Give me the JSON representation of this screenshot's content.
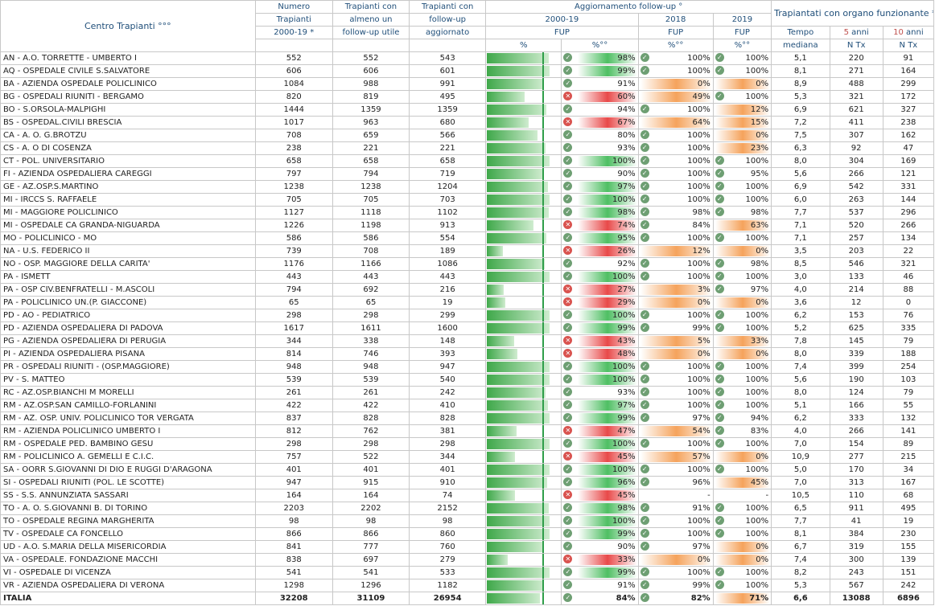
{
  "header": {
    "centro": "Centro Trapianti °°°",
    "numero": [
      "Numero",
      "Trapianti",
      "2000-19 *"
    ],
    "almeno": [
      "Trapianti con",
      "almeno un",
      "follow-up utile"
    ],
    "aggiornato": [
      "Trapianti con",
      "follow-up",
      "aggiornato"
    ],
    "agg_title": "Aggiornamento follow-up °",
    "y2000": "2000-19",
    "y2018": "2018",
    "y2019": "2019",
    "fup": "FUP",
    "pct": "%",
    "pctdeg": "%°°",
    "funz_title": "Trapiantati con organo funzionante **",
    "tempo": [
      "Tempo",
      "mediana"
    ],
    "anni5": [
      "5",
      " anni"
    ],
    "anni10": [
      "10",
      " anni"
    ],
    "ntx": "N Tx"
  },
  "rows": [
    {
      "name": "AN  -  A.O. TORRETTE - UMBERTO I",
      "n": "552",
      "a": "552",
      "g": "543",
      "p": 98,
      "p18": "100%",
      "p19": "100%",
      "t": "5,1",
      "c5": "220",
      "c10": "91"
    },
    {
      "name": "AQ  -  OSPEDALE CIVILE S.SALVATORE",
      "n": "606",
      "a": "606",
      "g": "601",
      "p": 99,
      "p18": "100%",
      "p19": "100%",
      "t": "8,1",
      "c5": "271",
      "c10": "164"
    },
    {
      "name": "BA  -  AZIENDA OSPEDALE POLICLINICO",
      "n": "1084",
      "a": "988",
      "g": "991",
      "p": 91,
      "p18": "0%",
      "p19": "0%",
      "t": "8,9",
      "c5": "488",
      "c10": "299"
    },
    {
      "name": "BG  -  OSPEDALI RIUNITI - BERGAMO",
      "n": "820",
      "a": "819",
      "g": "495",
      "p": 60,
      "p18": "49%",
      "p19": "100%",
      "t": "5,3",
      "c5": "321",
      "c10": "172"
    },
    {
      "name": "BO  -  S.ORSOLA-MALPIGHI",
      "n": "1444",
      "a": "1359",
      "g": "1359",
      "p": 94,
      "p18": "100%",
      "p19": "12%",
      "t": "6,9",
      "c5": "621",
      "c10": "327"
    },
    {
      "name": "BS  -  OSPEDAL.CIVILI BRESCIA",
      "n": "1017",
      "a": "963",
      "g": "680",
      "p": 67,
      "p18": "64%",
      "p19": "15%",
      "t": "7,2",
      "c5": "411",
      "c10": "238"
    },
    {
      "name": "CA  -  A. O. G.BROTZU",
      "n": "708",
      "a": "659",
      "g": "566",
      "p": 80,
      "p18": "100%",
      "p19": "0%",
      "t": "7,5",
      "c5": "307",
      "c10": "162"
    },
    {
      "name": "CS  -  A. O DI COSENZA",
      "n": "238",
      "a": "221",
      "g": "221",
      "p": 93,
      "p18": "100%",
      "p19": "23%",
      "t": "6,3",
      "c5": "92",
      "c10": "47"
    },
    {
      "name": "CT  -  POL. UNIVERSITARIO",
      "n": "658",
      "a": "658",
      "g": "658",
      "p": 100,
      "p18": "100%",
      "p19": "100%",
      "t": "8,0",
      "c5": "304",
      "c10": "169"
    },
    {
      "name": "FI  -  AZIENDA OSPEDALIERA CAREGGI",
      "n": "797",
      "a": "794",
      "g": "719",
      "p": 90,
      "p18": "100%",
      "p19": "95%",
      "t": "5,6",
      "c5": "266",
      "c10": "121"
    },
    {
      "name": "GE  -  AZ.OSP.S.MARTINO",
      "n": "1238",
      "a": "1238",
      "g": "1204",
      "p": 97,
      "p18": "100%",
      "p19": "100%",
      "t": "6,9",
      "c5": "542",
      "c10": "331"
    },
    {
      "name": "MI  -  IRCCS S. RAFFAELE",
      "n": "705",
      "a": "705",
      "g": "703",
      "p": 100,
      "p18": "100%",
      "p19": "100%",
      "t": "6,0",
      "c5": "263",
      "c10": "144"
    },
    {
      "name": "MI  -  MAGGIORE POLICLINICO",
      "n": "1127",
      "a": "1118",
      "g": "1102",
      "p": 98,
      "p18": "98%",
      "p19": "98%",
      "t": "7,7",
      "c5": "537",
      "c10": "296"
    },
    {
      "name": "MI  -  OSPEDALE CA GRANDA-NIGUARDA",
      "n": "1226",
      "a": "1198",
      "g": "913",
      "p": 74,
      "p18": "84%",
      "p19": "63%",
      "t": "7,1",
      "c5": "520",
      "c10": "266"
    },
    {
      "name": "MO  -  POLICLINICO - MO",
      "n": "586",
      "a": "586",
      "g": "554",
      "p": 95,
      "p18": "100%",
      "p19": "100%",
      "t": "7,1",
      "c5": "257",
      "c10": "134"
    },
    {
      "name": "NA  -  U.S. FEDERICO II",
      "n": "739",
      "a": "708",
      "g": "189",
      "p": 26,
      "p18": "12%",
      "p19": "0%",
      "t": "3,5",
      "c5": "203",
      "c10": "22"
    },
    {
      "name": "NO  -  OSP. MAGGIORE DELLA CARITA'",
      "n": "1176",
      "a": "1166",
      "g": "1086",
      "p": 92,
      "p18": "100%",
      "p19": "98%",
      "t": "8,5",
      "c5": "546",
      "c10": "321"
    },
    {
      "name": "PA  -  ISMETT",
      "n": "443",
      "a": "443",
      "g": "443",
      "p": 100,
      "p18": "100%",
      "p19": "100%",
      "t": "3,0",
      "c5": "133",
      "c10": "46"
    },
    {
      "name": "PA  -  OSP CIV.BENFRATELLI - M.ASCOLI",
      "n": "794",
      "a": "692",
      "g": "216",
      "p": 27,
      "p18": "3%",
      "p19": "97%",
      "t": "4,0",
      "c5": "214",
      "c10": "88"
    },
    {
      "name": "PA  -  POLICLINICO UN.(P. GIACCONE)",
      "n": "65",
      "a": "65",
      "g": "19",
      "p": 29,
      "p18": "0%",
      "p19": "0%",
      "t": "3,6",
      "c5": "12",
      "c10": "0"
    },
    {
      "name": "PD  -  AO - PEDIATRICO",
      "n": "298",
      "a": "298",
      "g": "299",
      "p": 100,
      "p18": "100%",
      "p19": "100%",
      "t": "6,2",
      "c5": "153",
      "c10": "76"
    },
    {
      "name": "PD  -  AZIENDA OSPEDALIERA DI PADOVA",
      "n": "1617",
      "a": "1611",
      "g": "1600",
      "p": 99,
      "p18": "99%",
      "p19": "100%",
      "t": "5,2",
      "c5": "625",
      "c10": "335"
    },
    {
      "name": "PG  -  AZIENDA OSPEDALIERA DI PERUGIA",
      "n": "344",
      "a": "338",
      "g": "148",
      "p": 43,
      "p18": "5%",
      "p19": "33%",
      "t": "7,8",
      "c5": "145",
      "c10": "79"
    },
    {
      "name": "PI  -  AZIENDA OSPEDALIERA PISANA",
      "n": "814",
      "a": "746",
      "g": "393",
      "p": 48,
      "p18": "0%",
      "p19": "0%",
      "t": "8,0",
      "c5": "339",
      "c10": "188"
    },
    {
      "name": "PR  -  OSPEDALI RIUNITI - (OSP.MAGGIORE)",
      "n": "948",
      "a": "948",
      "g": "947",
      "p": 100,
      "p18": "100%",
      "p19": "100%",
      "t": "7,4",
      "c5": "399",
      "c10": "254"
    },
    {
      "name": "PV  -  S. MATTEO",
      "n": "539",
      "a": "539",
      "g": "540",
      "p": 100,
      "p18": "100%",
      "p19": "100%",
      "t": "5,6",
      "c5": "190",
      "c10": "103"
    },
    {
      "name": "RC  -  AZ.OSP.BIANCHI M MORELLI",
      "n": "261",
      "a": "261",
      "g": "242",
      "p": 93,
      "p18": "100%",
      "p19": "100%",
      "t": "8,0",
      "c5": "124",
      "c10": "79"
    },
    {
      "name": "RM  -  AZ.OSP.SAN CAMILLO-FORLANINI",
      "n": "422",
      "a": "422",
      "g": "410",
      "p": 97,
      "p18": "100%",
      "p19": "100%",
      "t": "5,1",
      "c5": "166",
      "c10": "55"
    },
    {
      "name": "RM  -  AZ. OSP. UNIV. POLICLINICO TOR VERGATA",
      "n": "837",
      "a": "828",
      "g": "828",
      "p": 99,
      "p18": "97%",
      "p19": "94%",
      "t": "6,2",
      "c5": "333",
      "c10": "132"
    },
    {
      "name": "RM  -  AZIENDA POLICLINICO UMBERTO I",
      "n": "812",
      "a": "762",
      "g": "381",
      "p": 47,
      "p18": "54%",
      "p19": "83%",
      "t": "4,0",
      "c5": "266",
      "c10": "141"
    },
    {
      "name": "RM  -  OSPEDALE PED. BAMBINO GESU",
      "n": "298",
      "a": "298",
      "g": "298",
      "p": 100,
      "p18": "100%",
      "p19": "100%",
      "t": "7,0",
      "c5": "154",
      "c10": "89"
    },
    {
      "name": "RM  -  POLICLINICO A. GEMELLI E C.I.C.",
      "n": "757",
      "a": "522",
      "g": "344",
      "p": 45,
      "p18": "57%",
      "p19": "0%",
      "t": "10,9",
      "c5": "277",
      "c10": "215"
    },
    {
      "name": "SA - OORR S.GIOVANNI DI DIO E RUGGI D'ARAGONA",
      "n": "401",
      "a": "401",
      "g": "401",
      "p": 100,
      "p18": "100%",
      "p19": "100%",
      "t": "5,0",
      "c5": "170",
      "c10": "34"
    },
    {
      "name": "SI  -  OSPEDALI RIUNITI (POL. LE SCOTTE)",
      "n": "947",
      "a": "915",
      "g": "910",
      "p": 96,
      "p18": "96%",
      "p19": "45%",
      "t": "7,0",
      "c5": "313",
      "c10": "167"
    },
    {
      "name": "SS  -  S.S. ANNUNZIATA SASSARI",
      "n": "164",
      "a": "164",
      "g": "74",
      "p": 45,
      "p18": "-",
      "p19": "-",
      "t": "10,5",
      "c5": "110",
      "c10": "68"
    },
    {
      "name": "TO  -  A. O. S.GIOVANNI B. DI TORINO",
      "n": "2203",
      "a": "2202",
      "g": "2152",
      "p": 98,
      "p18": "91%",
      "p19": "100%",
      "t": "6,5",
      "c5": "911",
      "c10": "495"
    },
    {
      "name": "TO  -  OSPEDALE REGINA MARGHERITA",
      "n": "98",
      "a": "98",
      "g": "98",
      "p": 100,
      "p18": "100%",
      "p19": "100%",
      "t": "7,7",
      "c5": "41",
      "c10": "19"
    },
    {
      "name": "TV  -  OSPEDALE CA FONCELLO",
      "n": "866",
      "a": "866",
      "g": "860",
      "p": 99,
      "p18": "100%",
      "p19": "100%",
      "t": "8,1",
      "c5": "384",
      "c10": "230"
    },
    {
      "name": "UD  -  A.O. S.MARIA DELLA MISERICORDIA",
      "n": "841",
      "a": "777",
      "g": "760",
      "p": 90,
      "p18": "97%",
      "p19": "0%",
      "t": "6,7",
      "c5": "319",
      "c10": "155"
    },
    {
      "name": "VA  -  OSPEDALE. FONDAZIONE MACCHI",
      "n": "838",
      "a": "697",
      "g": "279",
      "p": 33,
      "p18": "0%",
      "p19": "0%",
      "t": "7,4",
      "c5": "300",
      "c10": "139"
    },
    {
      "name": "VI  -  OSPEDALE DI VICENZA",
      "n": "541",
      "a": "541",
      "g": "533",
      "p": 99,
      "p18": "100%",
      "p19": "100%",
      "t": "8,2",
      "c5": "243",
      "c10": "151"
    },
    {
      "name": "VR  -  AZIENDA OSPEDALIERA DI VERONA",
      "n": "1298",
      "a": "1296",
      "g": "1182",
      "p": 91,
      "p18": "99%",
      "p19": "100%",
      "t": "5,3",
      "c5": "567",
      "c10": "242"
    }
  ],
  "total": {
    "name": "ITALIA",
    "n": "32208",
    "a": "31109",
    "g": "26954",
    "p": 84,
    "p18": "82%",
    "p19": "71%",
    "t": "6,6",
    "c5": "13088",
    "c10": "6896"
  },
  "colors": {
    "good": "#4fbf63",
    "bad": "#e84a4a",
    "warn": "#f5a35c",
    "header": "#1f4e79",
    "accent": "#c0504d"
  }
}
